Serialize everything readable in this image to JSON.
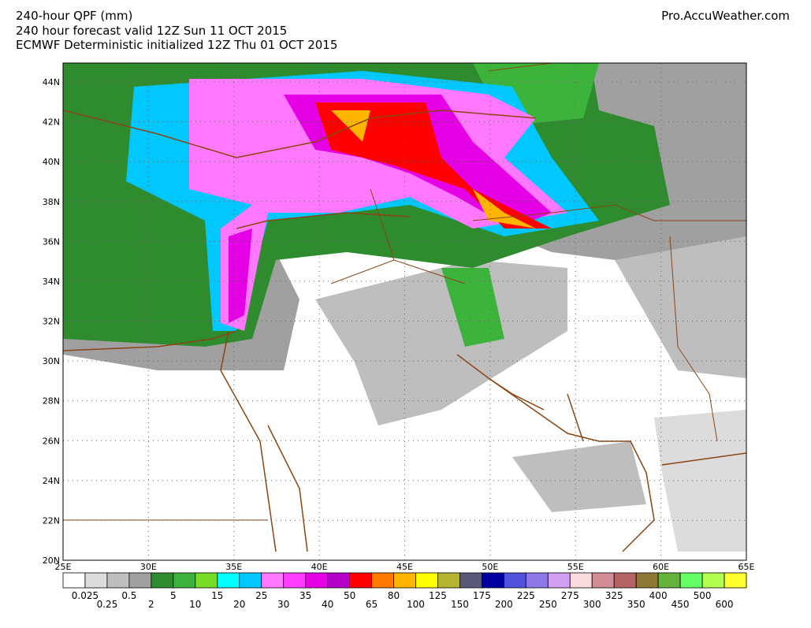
{
  "header": {
    "title": "240-hour QPF (mm)",
    "line2": "240 hour forecast valid 12Z Sun 11 OCT 2015",
    "line3": "ECMWF Deterministic initialized 12Z Thu 01 OCT 2015",
    "source": "Pro.AccuWeather.com"
  },
  "map": {
    "lat_labels": [
      "44N",
      "42N",
      "40N",
      "38N",
      "36N",
      "34N",
      "32N",
      "30N",
      "28N",
      "26N",
      "24N",
      "22N",
      "20N"
    ],
    "lon_labels": [
      "25E",
      "30E",
      "35E",
      "40E",
      "45E",
      "50E",
      "55E",
      "60E",
      "65E"
    ]
  },
  "legend": {
    "labels": [
      "0.025",
      "0.25",
      "0.5",
      "2",
      "5",
      "10",
      "15",
      "20",
      "25",
      "30",
      "35",
      "40",
      "50",
      "65",
      "80",
      "100",
      "125",
      "150",
      "175",
      "200",
      "225",
      "250",
      "275",
      "300",
      "325",
      "350",
      "400",
      "450",
      "500",
      "600"
    ],
    "colors": [
      "#ffffff",
      "#dcdcdc",
      "#bebebe",
      "#a0a0a0",
      "#2e8b2e",
      "#3cb43c",
      "#78dc28",
      "#00ffff",
      "#00c8ff",
      "#ff78ff",
      "#ff3cff",
      "#e600e6",
      "#b400c8",
      "#ff0000",
      "#ff7800",
      "#ffb400",
      "#ffff00",
      "#b4b432",
      "#5a5a78",
      "#0000a0",
      "#5050dc",
      "#8c78e6",
      "#d2a0f0",
      "#fadcdc",
      "#d28c96",
      "#b46464",
      "#8c7832",
      "#64b43c",
      "#64ff64",
      "#b4ff50",
      "#ffff32"
    ]
  }
}
